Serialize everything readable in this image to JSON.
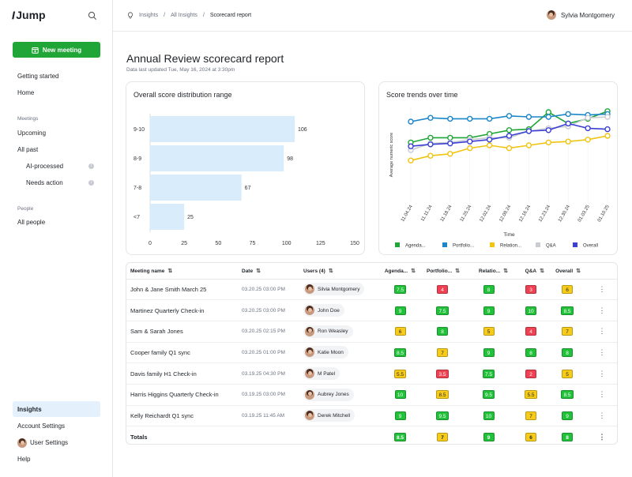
{
  "app": {
    "name": "Jump"
  },
  "sidebar": {
    "new_meeting": "New meeting",
    "getting_started": "Getting started",
    "home": "Home",
    "meetings_section": "Meetings",
    "upcoming": "Upcoming",
    "all_past": "All past",
    "ai_processed": "AI-processed",
    "needs_action": "Needs action",
    "people_section": "People",
    "all_people": "All people",
    "insights": "Insights",
    "account_settings": "Account Settings",
    "user_settings": "User Settings",
    "help": "Help"
  },
  "breadcrumb": {
    "items": [
      "Insights",
      "All Insights",
      "Scorecard report"
    ]
  },
  "user": {
    "name": "Sylvia Montgomery"
  },
  "page": {
    "title": "Annual Review scorecard report",
    "subtitle": "Data last updated Tue, May 16, 2024 at 3:30pm"
  },
  "chart_data": [
    {
      "type": "bar",
      "orientation": "horizontal",
      "title": "Overall score distribution range",
      "categories": [
        "9-10",
        "8-9",
        "7-8",
        "<7"
      ],
      "values": [
        106,
        98,
        67,
        25
      ],
      "xlim": [
        0,
        150
      ],
      "xticks": [
        0,
        25,
        50,
        75,
        100,
        125,
        150
      ],
      "bar_color": "#d9ecfb"
    },
    {
      "type": "line",
      "title": "Score trends over time",
      "xlabel": "Time",
      "ylabel": "Average numeric score",
      "categories": [
        "11.04.24",
        "11.11.24",
        "11.18.24",
        "11.25.24",
        "12.02.24",
        "12.09.24",
        "12.16.24",
        "12.23.24",
        "12.30.24",
        "01.03.25",
        "01.10.25"
      ],
      "ylim": [
        0,
        10
      ],
      "series": [
        {
          "name": "Agenda...",
          "color": "#1fa637",
          "values": [
            6.3,
            6.8,
            6.8,
            6.8,
            7.2,
            7.6,
            7.7,
            9.5,
            8.3,
            8.8,
            9.6
          ]
        },
        {
          "name": "Portfolio...",
          "color": "#1b86c8",
          "values": [
            8.5,
            8.9,
            8.8,
            8.8,
            8.8,
            9.1,
            9.0,
            9.0,
            9.3,
            9.2,
            9.3
          ]
        },
        {
          "name": "Relation...",
          "color": "#f1c40f",
          "values": [
            4.4,
            4.9,
            5.1,
            5.7,
            6.0,
            5.7,
            6.0,
            6.3,
            6.4,
            6.6,
            7.0
          ]
        },
        {
          "name": "Q&A",
          "color": "#c9ccd1",
          "values": [
            5.5,
            6.2,
            6.3,
            6.6,
            6.8,
            6.8,
            7.5,
            7.8,
            8.0,
            8.9,
            9.0
          ]
        },
        {
          "name": "Overall",
          "color": "#3b3fd6",
          "values": [
            5.9,
            6.1,
            6.2,
            6.4,
            6.6,
            7.0,
            7.5,
            7.6,
            8.3,
            7.8,
            7.7
          ]
        }
      ]
    }
  ],
  "table": {
    "columns": [
      {
        "label": "Meeting name"
      },
      {
        "label": "Date"
      },
      {
        "label": "Users (4)"
      },
      {
        "label": "Agenda..."
      },
      {
        "label": "Portfolio..."
      },
      {
        "label": "Relatio..."
      },
      {
        "label": "Q&A"
      },
      {
        "label": "Overall"
      }
    ],
    "rows": [
      {
        "name": "John & Jane Smith March 25",
        "date": "03.20.25 03:00 PM",
        "user": "Silvia Montgomery",
        "scores": [
          "7.5",
          "4",
          "8",
          "3",
          "6"
        ],
        "colors": [
          "green",
          "red",
          "green",
          "red",
          "yellow"
        ]
      },
      {
        "name": "Martinez Quarterly Check-in",
        "date": "03.20.25 03:00 PM",
        "user": "John Doe",
        "scores": [
          "9",
          "7.5",
          "9",
          "10",
          "8.5"
        ],
        "colors": [
          "green",
          "green",
          "green",
          "green",
          "green"
        ]
      },
      {
        "name": "Sam & Sarah Jones",
        "date": "03.20.25 02:15 PM",
        "user": "Ron Weasley",
        "scores": [
          "6",
          "8",
          "5",
          "4",
          "7"
        ],
        "colors": [
          "yellow",
          "green",
          "yellow",
          "red",
          "yellow"
        ]
      },
      {
        "name": "Cooper family Q1 sync",
        "date": "03.20.25 01:00 PM",
        "user": "Katie Moon",
        "scores": [
          "8.5",
          "7",
          "9",
          "8",
          "8"
        ],
        "colors": [
          "green",
          "yellow",
          "green",
          "green",
          "green"
        ]
      },
      {
        "name": "Davis family H1 Check-in",
        "date": "03.19.25 04:30 PM",
        "user": "M Patel",
        "scores": [
          "5.5",
          "3.5",
          "7.5",
          "2",
          "5"
        ],
        "colors": [
          "yellow",
          "red",
          "green",
          "red",
          "yellow"
        ]
      },
      {
        "name": "Harris Higgins Quarterly Check-in",
        "date": "03.19.25 03:00 PM",
        "user": "Aubrey Jones",
        "scores": [
          "10",
          "8.5",
          "9.5",
          "5.5",
          "8.5"
        ],
        "colors": [
          "green",
          "yellow",
          "green",
          "yellow",
          "green"
        ]
      },
      {
        "name": "Kelly Reichardt Q1 sync",
        "date": "03.19.25 11:45 AM",
        "user": "Derek Mitchell",
        "scores": [
          "9",
          "9.5",
          "10",
          "7",
          "9"
        ],
        "colors": [
          "green",
          "green",
          "green",
          "yellow",
          "green"
        ]
      }
    ],
    "totals": {
      "label": "Totals",
      "scores": [
        "8.5",
        "7",
        "9",
        "6",
        "8"
      ],
      "colors": [
        "green",
        "yellow",
        "green",
        "yellow",
        "green"
      ]
    }
  },
  "colors": {
    "brand": "#1fa637",
    "active_nav": "#e4f0fc",
    "green": "#22c13a",
    "red": "#f04152",
    "yellow": "#f7cb1a"
  }
}
